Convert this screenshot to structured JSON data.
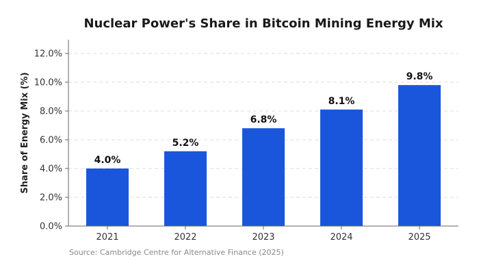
{
  "chart_data": {
    "type": "bar",
    "title": "Nuclear Power's Share in Bitcoin Mining Energy Mix",
    "xlabel": "",
    "ylabel": "Share of Energy Mix (%)",
    "categories": [
      "2021",
      "2022",
      "2023",
      "2024",
      "2025"
    ],
    "values": [
      4.0,
      5.2,
      6.8,
      8.1,
      9.8
    ],
    "data_labels": [
      "4.0%",
      "5.2%",
      "6.8%",
      "8.1%",
      "9.8%"
    ],
    "ylim": [
      0,
      12
    ],
    "yticks": [
      0,
      2,
      4,
      6,
      8,
      10,
      12
    ],
    "ytick_labels": [
      "0.0%",
      "2.0%",
      "4.0%",
      "6.0%",
      "8.0%",
      "10.0%",
      "12.0%"
    ],
    "grid": true,
    "bar_color": "#1a56db",
    "source": "Source: Cambridge Centre for Alternative Finance (2025)"
  }
}
